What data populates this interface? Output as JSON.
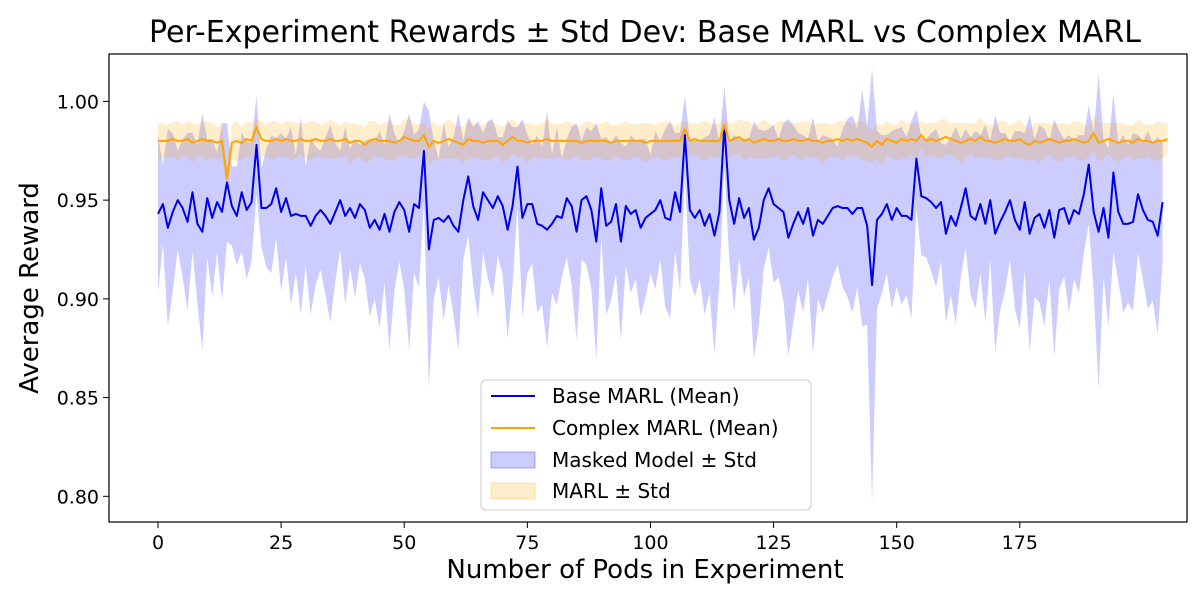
{
  "chart_data": {
    "type": "line",
    "title": "Per-Experiment Rewards ± Std Dev: Base MARL vs Complex MARL",
    "xlabel": "Number of Pods in Experiment",
    "ylabel": "Average Reward",
    "xlim": [
      -9.95,
      208.95
    ],
    "ylim": [
      0.787,
      1.024
    ],
    "xticks": [
      0,
      25,
      50,
      75,
      100,
      125,
      150,
      175
    ],
    "yticks": [
      0.8,
      0.85,
      0.9,
      0.95,
      1.0
    ],
    "ytick_labels": [
      "0.80",
      "0.85",
      "0.90",
      "0.95",
      "1.00"
    ],
    "grid": false,
    "legend_position": "lower-center",
    "colors": {
      "base": "#0000e6",
      "complex": "#ffa500",
      "base_band": "#0000ff",
      "complex_band": "#ffa500"
    },
    "legend": [
      {
        "label": "Base MARL (Mean)",
        "kind": "line",
        "series": "base"
      },
      {
        "label": "Complex MARL (Mean)",
        "kind": "line",
        "series": "complex"
      },
      {
        "label": "Masked Model ± Std",
        "kind": "band",
        "series": "base"
      },
      {
        "label": "MARL ± Std",
        "kind": "band",
        "series": "complex"
      }
    ],
    "x_start": 0,
    "x_step": 1,
    "series": [
      {
        "name": "Base MARL (Mean)",
        "band_name": "Masked Model ± Std",
        "key": "base",
        "mean": [
          0.943,
          0.948,
          0.936,
          0.944,
          0.95,
          0.946,
          0.939,
          0.954,
          0.938,
          0.934,
          0.951,
          0.941,
          0.949,
          0.944,
          0.959,
          0.947,
          0.942,
          0.954,
          0.945,
          0.949,
          0.978,
          0.946,
          0.946,
          0.948,
          0.956,
          0.944,
          0.951,
          0.942,
          0.943,
          0.942,
          0.942,
          0.937,
          0.942,
          0.945,
          0.942,
          0.938,
          0.944,
          0.95,
          0.942,
          0.946,
          0.941,
          0.948,
          0.945,
          0.936,
          0.94,
          0.935,
          0.943,
          0.934,
          0.944,
          0.949,
          0.945,
          0.934,
          0.948,
          0.946,
          0.975,
          0.925,
          0.94,
          0.941,
          0.939,
          0.942,
          0.937,
          0.934,
          0.95,
          0.962,
          0.947,
          0.94,
          0.954,
          0.95,
          0.946,
          0.952,
          0.947,
          0.935,
          0.947,
          0.967,
          0.941,
          0.948,
          0.948,
          0.938,
          0.937,
          0.935,
          0.938,
          0.942,
          0.941,
          0.951,
          0.947,
          0.934,
          0.95,
          0.952,
          0.945,
          0.929,
          0.956,
          0.937,
          0.939,
          0.948,
          0.929,
          0.947,
          0.943,
          0.945,
          0.936,
          0.941,
          0.943,
          0.945,
          0.95,
          0.941,
          0.94,
          0.954,
          0.944,
          0.983,
          0.945,
          0.941,
          0.945,
          0.937,
          0.943,
          0.932,
          0.944,
          0.988,
          0.95,
          0.938,
          0.951,
          0.941,
          0.946,
          0.93,
          0.936,
          0.95,
          0.956,
          0.948,
          0.946,
          0.944,
          0.931,
          0.938,
          0.944,
          0.938,
          0.946,
          0.932,
          0.94,
          0.938,
          0.942,
          0.946,
          0.947,
          0.946,
          0.946,
          0.943,
          0.946,
          0.946,
          0.937,
          0.907,
          0.94,
          0.943,
          0.948,
          0.94,
          0.946,
          0.942,
          0.942,
          0.94,
          0.971,
          0.952,
          0.951,
          0.949,
          0.946,
          0.949,
          0.933,
          0.942,
          0.937,
          0.946,
          0.956,
          0.942,
          0.94,
          0.948,
          0.938,
          0.95,
          0.933,
          0.939,
          0.944,
          0.95,
          0.94,
          0.935,
          0.949,
          0.933,
          0.941,
          0.943,
          0.936,
          0.945,
          0.931,
          0.945,
          0.946,
          0.938,
          0.945,
          0.943,
          0.953,
          0.968,
          0.944,
          0.934,
          0.946,
          0.931,
          0.964,
          0.944,
          0.938,
          0.938,
          0.939,
          0.953,
          0.945,
          0.94,
          0.939,
          0.932,
          0.949
        ],
        "std": [
          0.04,
          0.02,
          0.05,
          0.04,
          0.025,
          0.035,
          0.045,
          0.03,
          0.04,
          0.06,
          0.03,
          0.04,
          0.025,
          0.045,
          0.03,
          0.02,
          0.025,
          0.03,
          0.035,
          0.03,
          0.025,
          0.02,
          0.03,
          0.035,
          0.025,
          0.04,
          0.03,
          0.045,
          0.03,
          0.05,
          0.025,
          0.045,
          0.035,
          0.03,
          0.04,
          0.05,
          0.035,
          0.025,
          0.045,
          0.03,
          0.04,
          0.03,
          0.035,
          0.045,
          0.04,
          0.05,
          0.035,
          0.06,
          0.04,
          0.03,
          0.04,
          0.06,
          0.035,
          0.04,
          0.025,
          0.07,
          0.04,
          0.03,
          0.05,
          0.035,
          0.045,
          0.06,
          0.03,
          0.03,
          0.04,
          0.05,
          0.03,
          0.04,
          0.045,
          0.03,
          0.035,
          0.055,
          0.04,
          0.02,
          0.05,
          0.035,
          0.03,
          0.045,
          0.04,
          0.06,
          0.035,
          0.045,
          0.03,
          0.03,
          0.04,
          0.055,
          0.03,
          0.035,
          0.04,
          0.06,
          0.025,
          0.045,
          0.04,
          0.035,
          0.05,
          0.03,
          0.04,
          0.035,
          0.045,
          0.04,
          0.03,
          0.04,
          0.03,
          0.045,
          0.05,
          0.03,
          0.04,
          0.02,
          0.035,
          0.04,
          0.035,
          0.045,
          0.04,
          0.06,
          0.035,
          0.02,
          0.03,
          0.045,
          0.03,
          0.04,
          0.035,
          0.06,
          0.05,
          0.035,
          0.03,
          0.04,
          0.035,
          0.045,
          0.06,
          0.05,
          0.04,
          0.045,
          0.035,
          0.06,
          0.04,
          0.045,
          0.04,
          0.035,
          0.03,
          0.04,
          0.045,
          0.05,
          0.04,
          0.06,
          0.05,
          0.11,
          0.045,
          0.04,
          0.035,
          0.045,
          0.04,
          0.045,
          0.04,
          0.05,
          0.025,
          0.03,
          0.03,
          0.035,
          0.04,
          0.03,
          0.045,
          0.04,
          0.05,
          0.035,
          0.03,
          0.04,
          0.045,
          0.035,
          0.05,
          0.03,
          0.06,
          0.045,
          0.04,
          0.03,
          0.045,
          0.05,
          0.035,
          0.06,
          0.04,
          0.045,
          0.05,
          0.035,
          0.06,
          0.04,
          0.035,
          0.045,
          0.035,
          0.04,
          0.03,
          0.03,
          0.04,
          0.08,
          0.035,
          0.045,
          0.04,
          0.035,
          0.045,
          0.04,
          0.045,
          0.03,
          0.035,
          0.045,
          0.04,
          0.05,
          0.03
        ]
      },
      {
        "name": "Complex MARL (Mean)",
        "band_name": "MARL ± Std",
        "key": "complex",
        "mean": [
          0.98,
          0.98,
          0.98,
          0.981,
          0.98,
          0.98,
          0.981,
          0.979,
          0.98,
          0.981,
          0.98,
          0.98,
          0.979,
          0.98,
          0.961,
          0.979,
          0.98,
          0.979,
          0.981,
          0.98,
          0.987,
          0.981,
          0.98,
          0.98,
          0.981,
          0.98,
          0.981,
          0.98,
          0.98,
          0.981,
          0.98,
          0.98,
          0.981,
          0.98,
          0.98,
          0.981,
          0.98,
          0.98,
          0.981,
          0.979,
          0.98,
          0.98,
          0.978,
          0.98,
          0.981,
          0.98,
          0.98,
          0.98,
          0.979,
          0.98,
          0.982,
          0.981,
          0.98,
          0.98,
          0.983,
          0.977,
          0.98,
          0.979,
          0.98,
          0.981,
          0.98,
          0.979,
          0.978,
          0.981,
          0.98,
          0.98,
          0.979,
          0.98,
          0.98,
          0.98,
          0.978,
          0.98,
          0.982,
          0.98,
          0.98,
          0.979,
          0.98,
          0.98,
          0.98,
          0.981,
          0.98,
          0.98,
          0.98,
          0.98,
          0.98,
          0.98,
          0.979,
          0.98,
          0.98,
          0.98,
          0.98,
          0.98,
          0.979,
          0.98,
          0.98,
          0.98,
          0.98,
          0.98,
          0.98,
          0.979,
          0.98,
          0.98,
          0.98,
          0.98,
          0.98,
          0.98,
          0.98,
          0.986,
          0.98,
          0.981,
          0.98,
          0.98,
          0.98,
          0.98,
          0.98,
          0.988,
          0.98,
          0.981,
          0.982,
          0.98,
          0.981,
          0.979,
          0.98,
          0.981,
          0.98,
          0.98,
          0.981,
          0.98,
          0.98,
          0.981,
          0.98,
          0.98,
          0.981,
          0.98,
          0.98,
          0.979,
          0.98,
          0.98,
          0.981,
          0.98,
          0.981,
          0.98,
          0.981,
          0.98,
          0.979,
          0.977,
          0.98,
          0.978,
          0.981,
          0.98,
          0.979,
          0.981,
          0.98,
          0.981,
          0.98,
          0.983,
          0.98,
          0.981,
          0.98,
          0.981,
          0.982,
          0.981,
          0.98,
          0.979,
          0.98,
          0.981,
          0.98,
          0.982,
          0.98,
          0.98,
          0.979,
          0.98,
          0.981,
          0.98,
          0.98,
          0.981,
          0.979,
          0.978,
          0.98,
          0.979,
          0.98,
          0.981,
          0.98,
          0.979,
          0.98,
          0.98,
          0.981,
          0.98,
          0.979,
          0.98,
          0.984,
          0.979,
          0.98,
          0.981,
          0.98,
          0.979,
          0.98,
          0.98,
          0.979,
          0.981,
          0.98,
          0.98,
          0.979,
          0.98,
          0.98,
          0.981
        ],
        "std": [
          0.009,
          0.009,
          0.008,
          0.009,
          0.01,
          0.008,
          0.009,
          0.01,
          0.008,
          0.009,
          0.01,
          0.009,
          0.008,
          0.009,
          0.005,
          0.009,
          0.01,
          0.008,
          0.009,
          0.009,
          0.004,
          0.009,
          0.008,
          0.01,
          0.009,
          0.008,
          0.009,
          0.01,
          0.009,
          0.008,
          0.009,
          0.01,
          0.009,
          0.008,
          0.009,
          0.01,
          0.009,
          0.008,
          0.009,
          0.01,
          0.009,
          0.008,
          0.009,
          0.01,
          0.009,
          0.008,
          0.009,
          0.01,
          0.009,
          0.008,
          0.009,
          0.01,
          0.009,
          0.008,
          0.006,
          0.009,
          0.01,
          0.008,
          0.009,
          0.01,
          0.009,
          0.008,
          0.009,
          0.01,
          0.009,
          0.008,
          0.009,
          0.01,
          0.009,
          0.008,
          0.009,
          0.01,
          0.009,
          0.008,
          0.009,
          0.01,
          0.009,
          0.008,
          0.009,
          0.01,
          0.009,
          0.008,
          0.009,
          0.01,
          0.009,
          0.008,
          0.009,
          0.01,
          0.009,
          0.008,
          0.009,
          0.01,
          0.009,
          0.008,
          0.009,
          0.01,
          0.009,
          0.008,
          0.009,
          0.01,
          0.009,
          0.008,
          0.009,
          0.01,
          0.009,
          0.008,
          0.009,
          0.004,
          0.009,
          0.008,
          0.009,
          0.01,
          0.009,
          0.008,
          0.009,
          0.003,
          0.009,
          0.008,
          0.009,
          0.01,
          0.009,
          0.008,
          0.009,
          0.01,
          0.009,
          0.008,
          0.009,
          0.01,
          0.009,
          0.008,
          0.009,
          0.01,
          0.009,
          0.008,
          0.009,
          0.01,
          0.009,
          0.008,
          0.009,
          0.01,
          0.009,
          0.008,
          0.009,
          0.01,
          0.009,
          0.008,
          0.009,
          0.01,
          0.009,
          0.008,
          0.009,
          0.01,
          0.009,
          0.008,
          0.009,
          0.007,
          0.009,
          0.008,
          0.009,
          0.01,
          0.009,
          0.008,
          0.009,
          0.01,
          0.009,
          0.008,
          0.009,
          0.01,
          0.009,
          0.008,
          0.009,
          0.01,
          0.009,
          0.008,
          0.009,
          0.01,
          0.009,
          0.008,
          0.009,
          0.01,
          0.009,
          0.008,
          0.009,
          0.01,
          0.009,
          0.008,
          0.009,
          0.01,
          0.009,
          0.008,
          0.009,
          0.01,
          0.009,
          0.008,
          0.009,
          0.01,
          0.009,
          0.008,
          0.009,
          0.01,
          0.009,
          0.008,
          0.009,
          0.01,
          0.009,
          0.008
        ]
      }
    ]
  }
}
